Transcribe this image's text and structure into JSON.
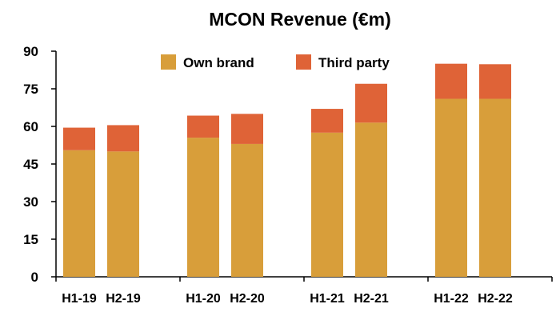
{
  "chart_data": {
    "type": "bar",
    "stacked": true,
    "title": "MCON Revenue (€m)",
    "xlabel": "",
    "ylabel": "",
    "categories": [
      "H1-19",
      "H2-19",
      "H1-20",
      "H2-20",
      "H1-21",
      "H2-21",
      "H1-22",
      "H2-22"
    ],
    "category_groups": [
      [
        "H1-19",
        "H2-19"
      ],
      [
        "H1-20",
        "H2-20"
      ],
      [
        "H1-21",
        "H2-21"
      ],
      [
        "H1-22",
        "H2-22"
      ]
    ],
    "series": [
      {
        "name": "Own brand",
        "color": "#D89E3A",
        "values": [
          50.5,
          50.0,
          55.5,
          53.0,
          57.5,
          61.5,
          71.0,
          71.0
        ]
      },
      {
        "name": "Third party",
        "color": "#DF6337",
        "values": [
          9.0,
          10.5,
          8.8,
          12.0,
          9.5,
          15.5,
          14.0,
          13.8
        ]
      }
    ],
    "ylim": [
      0,
      90
    ],
    "yticks": [
      0,
      15,
      30,
      45,
      60,
      75,
      90
    ],
    "grid": false,
    "legend_position": "top-center"
  }
}
